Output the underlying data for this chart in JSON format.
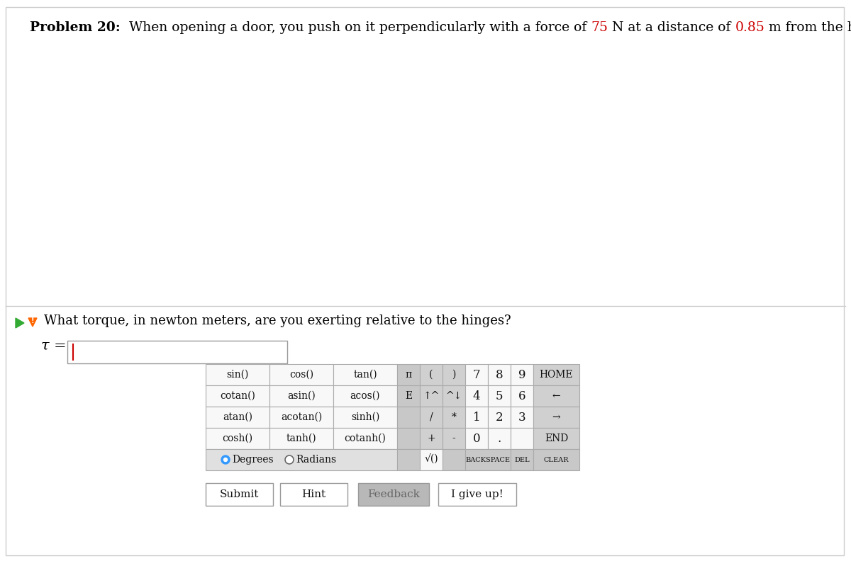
{
  "title_bold": "Problem 20:",
  "title_normal": "  When opening a door, you push on it perpendicularly with a force of ",
  "title_num1": "75",
  "title_mid": " N at a distance of ",
  "title_num2": "0.85",
  "title_end": " m from the hinges.",
  "question_text": "What torque, in newton meters, are you exerting relative to the hinges?",
  "tau_label": "τ = ",
  "bg_color": "#ffffff",
  "text_color": "#000000",
  "red_color": "#cc0000",
  "separator_color": "#cccccc",
  "grid_white": "#ffffff",
  "grid_gray": "#c8c8c8",
  "grid_dark_gray": "#d0d0d0",
  "border_color": "#999999",
  "button_border": "#aaaaaa",
  "feedback_bg": "#b0b0b0",
  "calc_rows": [
    [
      "sin()",
      "cos()",
      "tan()",
      "π",
      "(",
      ")",
      "7",
      "8",
      "9",
      "HOME"
    ],
    [
      "cotan()",
      "asin()",
      "acos()",
      "E",
      "↑^",
      "^↓",
      "4",
      "5",
      "6",
      "←"
    ],
    [
      "atan()",
      "acotan()",
      "sinh()",
      "",
      "/",
      "*",
      "1",
      "2",
      "3",
      "→"
    ],
    [
      "cosh()",
      "tanh()",
      "cotanh()",
      "",
      "+",
      "-",
      "0",
      ".",
      "",
      "END"
    ]
  ],
  "bottom_buttons": [
    "Submit",
    "Hint",
    "Feedback",
    "I give up!"
  ],
  "header_fontsize": 13.5,
  "body_fontsize": 13,
  "calc_fontsize": 11,
  "num_fontsize": 13
}
